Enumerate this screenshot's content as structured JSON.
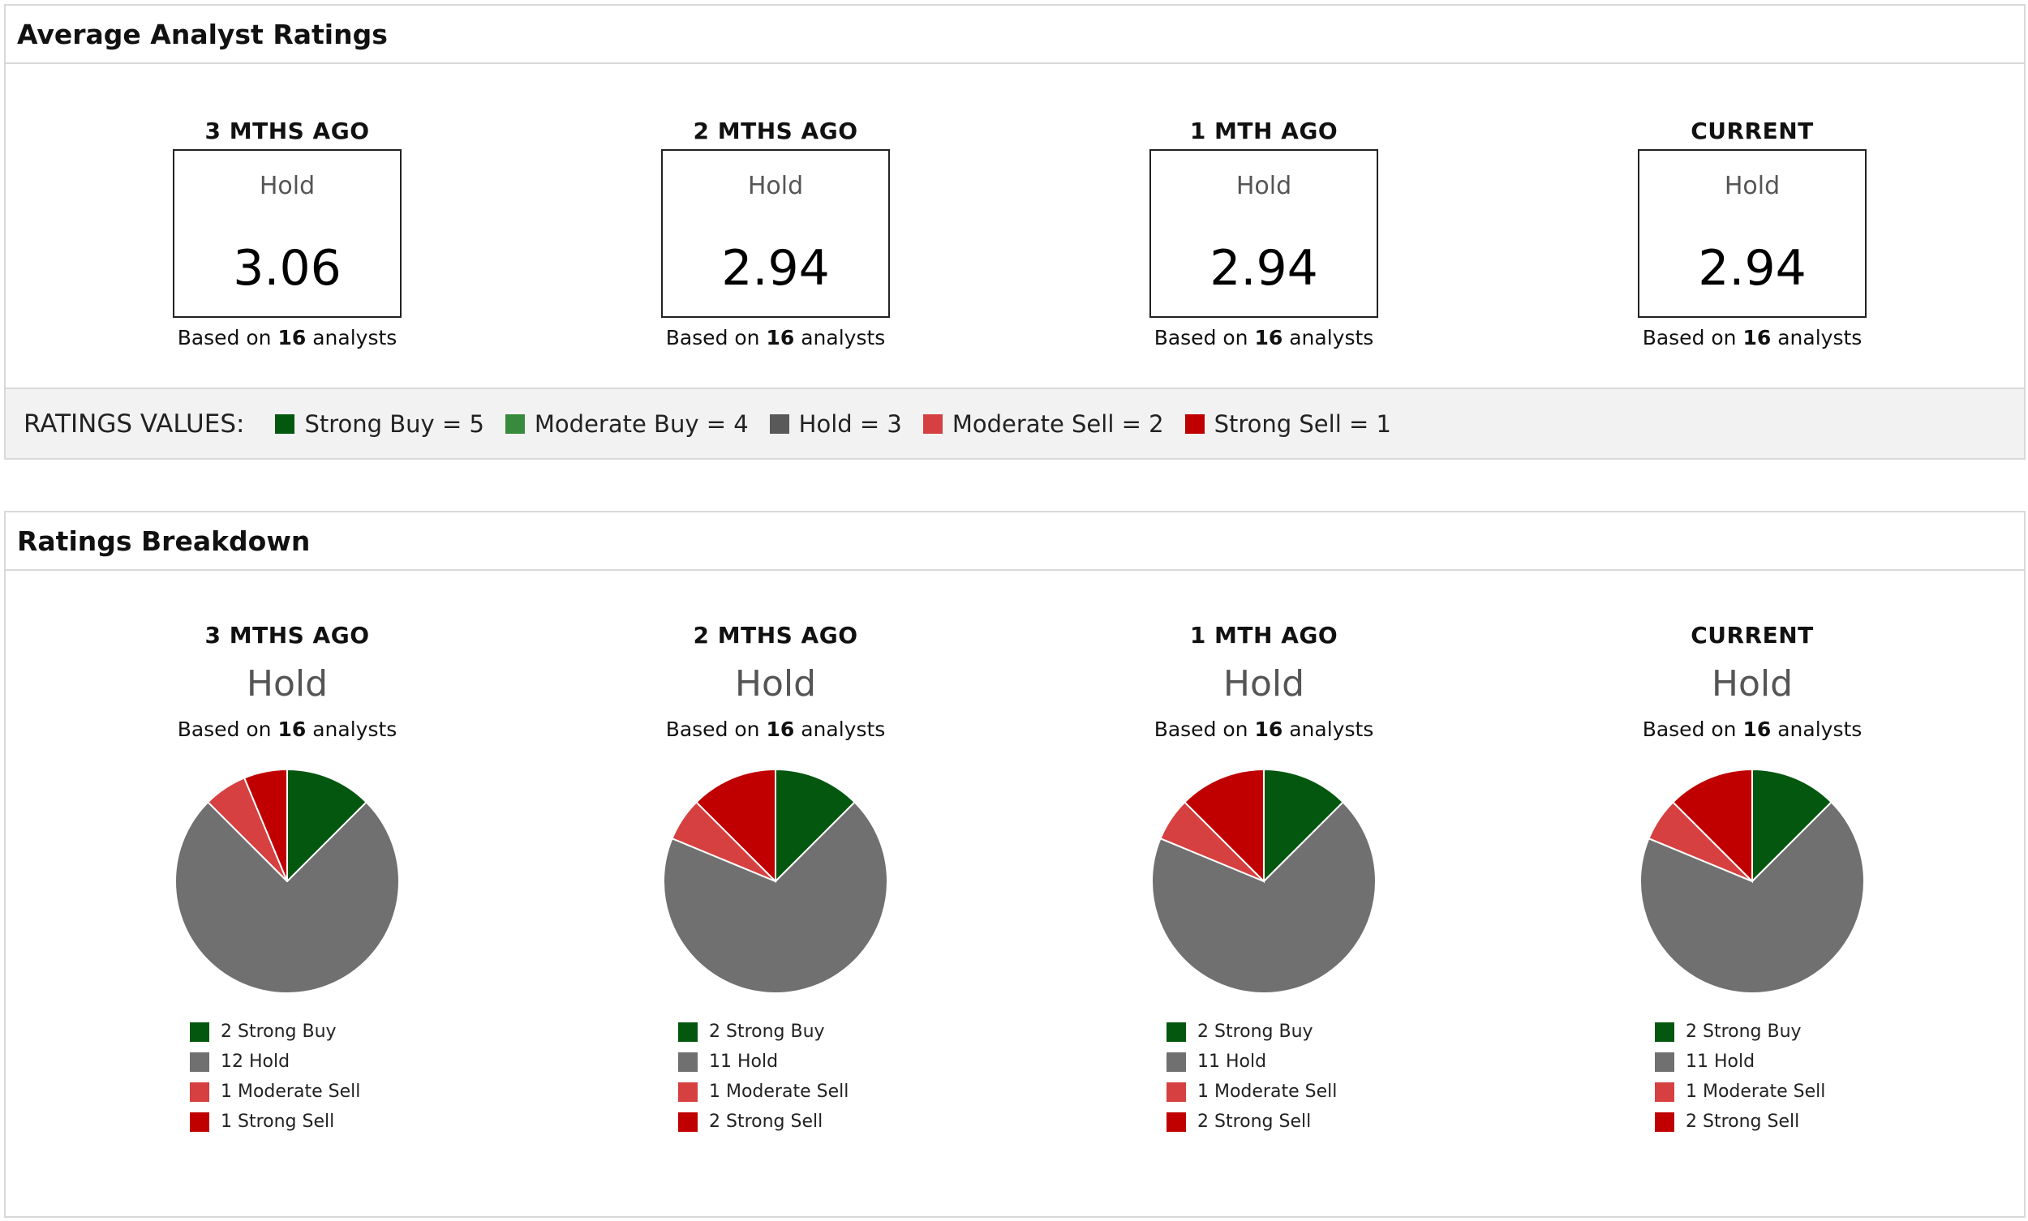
{
  "avg_panel": {
    "title": "Average Analyst Ratings",
    "columns": [
      {
        "period": "3 MTHS AGO",
        "rating": "Hold",
        "score": "3.06",
        "based_prefix": "Based on",
        "analysts": "16",
        "based_suffix": "analysts"
      },
      {
        "period": "2 MTHS AGO",
        "rating": "Hold",
        "score": "2.94",
        "based_prefix": "Based on",
        "analysts": "16",
        "based_suffix": "analysts"
      },
      {
        "period": "1 MTH AGO",
        "rating": "Hold",
        "score": "2.94",
        "based_prefix": "Based on",
        "analysts": "16",
        "based_suffix": "analysts"
      },
      {
        "period": "CURRENT",
        "rating": "Hold",
        "score": "2.94",
        "based_prefix": "Based on",
        "analysts": "16",
        "based_suffix": "analysts"
      }
    ],
    "values_title": "RATINGS VALUES:",
    "values": [
      {
        "label": "Strong Buy = 5",
        "color": "#04570f"
      },
      {
        "label": "Moderate Buy = 4",
        "color": "#388a3c"
      },
      {
        "label": "Hold = 3",
        "color": "#595959"
      },
      {
        "label": "Moderate Sell = 2",
        "color": "#d64040"
      },
      {
        "label": "Strong Sell = 1",
        "color": "#c00000"
      }
    ]
  },
  "breakdown_panel": {
    "title": "Ratings Breakdown"
  },
  "chart_data": [
    {
      "type": "pie",
      "title": "3 MTHS AGO",
      "subtitle": "Hold",
      "based_prefix": "Based on",
      "analysts": "16",
      "based_suffix": "analysts",
      "slices": [
        {
          "label": "2 Strong Buy",
          "value": 2,
          "color": "#04570f"
        },
        {
          "label": "12 Hold",
          "value": 12,
          "color": "#707070"
        },
        {
          "label": "1 Moderate Sell",
          "value": 1,
          "color": "#d64040"
        },
        {
          "label": "1 Strong Sell",
          "value": 1,
          "color": "#c00000"
        }
      ]
    },
    {
      "type": "pie",
      "title": "2 MTHS AGO",
      "subtitle": "Hold",
      "based_prefix": "Based on",
      "analysts": "16",
      "based_suffix": "analysts",
      "slices": [
        {
          "label": "2 Strong Buy",
          "value": 2,
          "color": "#04570f"
        },
        {
          "label": "11 Hold",
          "value": 11,
          "color": "#707070"
        },
        {
          "label": "1 Moderate Sell",
          "value": 1,
          "color": "#d64040"
        },
        {
          "label": "2 Strong Sell",
          "value": 2,
          "color": "#c00000"
        }
      ]
    },
    {
      "type": "pie",
      "title": "1 MTH AGO",
      "subtitle": "Hold",
      "based_prefix": "Based on",
      "analysts": "16",
      "based_suffix": "analysts",
      "slices": [
        {
          "label": "2 Strong Buy",
          "value": 2,
          "color": "#04570f"
        },
        {
          "label": "11 Hold",
          "value": 11,
          "color": "#707070"
        },
        {
          "label": "1 Moderate Sell",
          "value": 1,
          "color": "#d64040"
        },
        {
          "label": "2 Strong Sell",
          "value": 2,
          "color": "#c00000"
        }
      ]
    },
    {
      "type": "pie",
      "title": "CURRENT",
      "subtitle": "Hold",
      "based_prefix": "Based on",
      "analysts": "16",
      "based_suffix": "analysts",
      "slices": [
        {
          "label": "2 Strong Buy",
          "value": 2,
          "color": "#04570f"
        },
        {
          "label": "11 Hold",
          "value": 11,
          "color": "#707070"
        },
        {
          "label": "1 Moderate Sell",
          "value": 1,
          "color": "#d64040"
        },
        {
          "label": "2 Strong Sell",
          "value": 2,
          "color": "#c00000"
        }
      ]
    }
  ]
}
